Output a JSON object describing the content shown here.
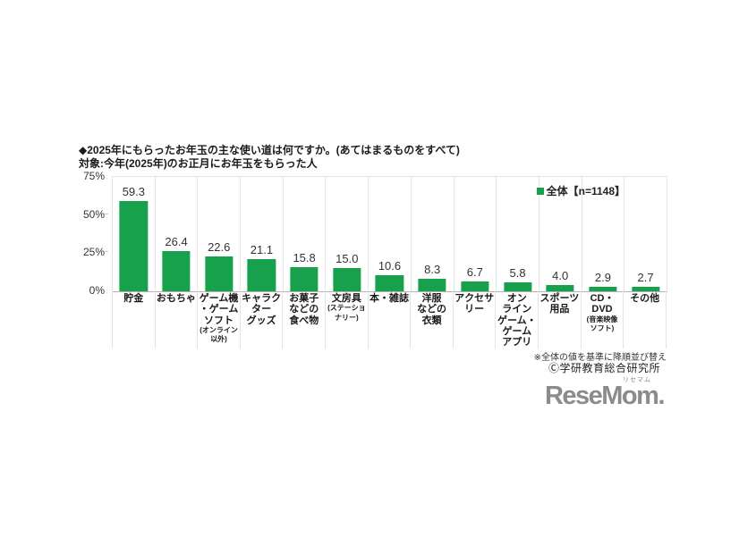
{
  "chart_data": {
    "type": "bar",
    "title": "◆2025年にもらったお年玉の主な使い道は何ですか。(あてはまるものをすべて)",
    "subtitle": "対象:今年(2025年)のお正月にお年玉をもらった人",
    "series_name": "全体【n=1148】",
    "categories": [
      "貯金",
      "おもちゃ",
      "ゲーム機・ゲームソフト(オンライン以外)",
      "キャラクターグッズ",
      "お菓子などの食べ物",
      "文房具(ステーショナリー)",
      "本・雑誌",
      "洋服などの衣類",
      "アクセサリー",
      "オンラインゲーム・ゲームアプリ",
      "スポーツ用品",
      "CD・DVD(音楽映像ソフト)",
      "その他"
    ],
    "values": [
      59.3,
      26.4,
      22.6,
      21.1,
      15.8,
      15.0,
      10.6,
      8.3,
      6.7,
      5.8,
      4.0,
      2.9,
      2.7
    ],
    "value_labels": [
      "59.3",
      "26.4",
      "22.6",
      "21.1",
      "15.8",
      "15.0",
      "10.6",
      "8.3",
      "6.7",
      "5.8",
      "4.0",
      "2.9",
      "2.7"
    ],
    "category_display": [
      {
        "lines": "貯金",
        "sub": ""
      },
      {
        "lines": "おもちゃ",
        "sub": ""
      },
      {
        "lines": "ゲーム機\n・ゲーム\nソフト",
        "sub": "(オンライン\n以外)"
      },
      {
        "lines": "キャラク\nター\nグッズ",
        "sub": ""
      },
      {
        "lines": "お菓子\nなどの\n食べ物",
        "sub": ""
      },
      {
        "lines": "文房具",
        "sub": "(ステーショ\nナリー)"
      },
      {
        "lines": "本・雑誌",
        "sub": ""
      },
      {
        "lines": "洋服\nなどの\n衣類",
        "sub": ""
      },
      {
        "lines": "アクセサ\nリー",
        "sub": ""
      },
      {
        "lines": "オン\nライン\nゲーム・\nゲーム\nアプリ",
        "sub": ""
      },
      {
        "lines": "スポーツ\n用品",
        "sub": ""
      },
      {
        "lines": "CD・\nDVD",
        "sub": "(音楽映像\nソフト)"
      },
      {
        "lines": "その他",
        "sub": ""
      }
    ],
    "ylim": [
      0,
      75
    ],
    "yticks": [
      {
        "label": "0%",
        "value": 0
      },
      {
        "label": "25%",
        "value": 25
      },
      {
        "label": "50%",
        "value": 50
      },
      {
        "label": "75%",
        "value": 75
      }
    ],
    "bar_color": "#17a14c",
    "legend_position": "top-right-inside",
    "grid": "vertical-category-separators"
  },
  "footer": {
    "sort_note": "※全体の値を基準に降順並び替え",
    "copyright": "Ⓒ学研教育総合研究所"
  },
  "logo": {
    "text": "ReseMom",
    "period": ".",
    "ruby": "リセマム",
    "color": "#8b8b8b"
  }
}
